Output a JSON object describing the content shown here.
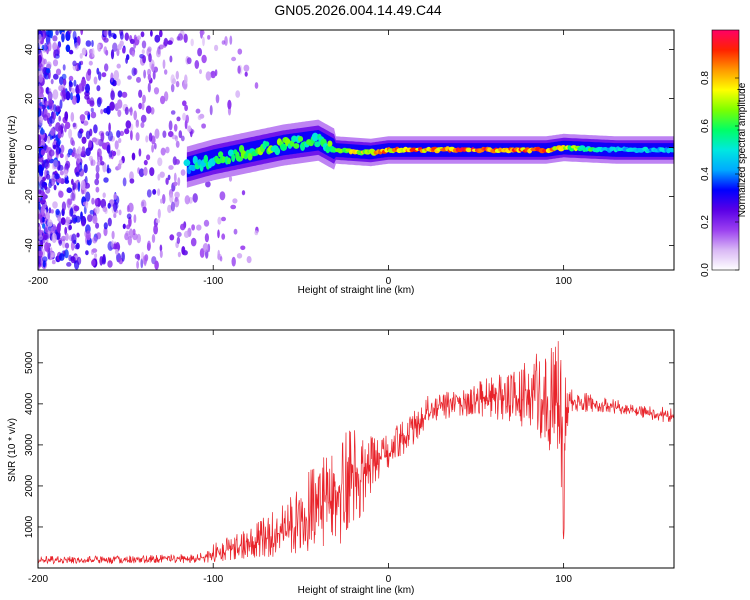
{
  "title": "GN05.2026.004.14.49.C44",
  "colors": {
    "snr_line": "#e8232a",
    "axis": "#000000",
    "background": "#ffffff"
  },
  "chart_data": [
    {
      "type": "heatmap",
      "title": "GN05.2026.004.14.49.C44",
      "xlabel": "Height of straight line (km)",
      "ylabel": "Frequency (Hz)",
      "xlim": [
        -200,
        163
      ],
      "ylim": [
        -50,
        48
      ],
      "x_ticks": [
        -200,
        -100,
        0,
        100
      ],
      "y_ticks": [
        -40,
        -20,
        0,
        20,
        40
      ],
      "colorbar": {
        "label": "Normalized spectral amplitude",
        "range": [
          0,
          1
        ],
        "ticks": [
          "0.0",
          "0.2",
          "0.4",
          "0.6",
          "0.8"
        ],
        "tick_values": [
          0.0,
          0.2,
          0.4,
          0.6,
          0.8
        ],
        "colormap": [
          "#ffffff",
          "#d9b8f5",
          "#9b40f0",
          "#5a00e6",
          "#0000ff",
          "#00aaff",
          "#00e8e0",
          "#00ff66",
          "#7cff00",
          "#ffff00",
          "#ff9900",
          "#ff2200",
          "#ff0066"
        ]
      },
      "description_series": [
        {
          "name": "noise region",
          "x_range": [
            -200,
            -75
          ],
          "frequency_range": [
            -48,
            48
          ],
          "amplitude_range": [
            0.0,
            0.3
          ]
        },
        {
          "name": "ridge",
          "points": [
            {
              "x": -115,
              "freq": -8,
              "amp": 0.45
            },
            {
              "x": -100,
              "freq": -5,
              "amp": 0.55
            },
            {
              "x": -80,
              "freq": -2,
              "amp": 0.6
            },
            {
              "x": -60,
              "freq": 1,
              "amp": 0.6
            },
            {
              "x": -40,
              "freq": 3,
              "amp": 0.55
            },
            {
              "x": -30,
              "freq": -1,
              "amp": 0.65
            },
            {
              "x": -10,
              "freq": -2,
              "amp": 0.75
            },
            {
              "x": 0,
              "freq": -1,
              "amp": 0.8
            },
            {
              "x": 40,
              "freq": -1,
              "amp": 0.85
            },
            {
              "x": 90,
              "freq": -1,
              "amp": 0.85
            },
            {
              "x": 100,
              "freq": 0,
              "amp": 0.7
            },
            {
              "x": 130,
              "freq": -1,
              "amp": 0.45
            },
            {
              "x": 163,
              "freq": -1,
              "amp": 0.45
            }
          ]
        }
      ]
    },
    {
      "type": "line",
      "title": "",
      "xlabel": "Height of straight line (km)",
      "ylabel": "SNR (10 * v/v)",
      "xlim": [
        -200,
        163
      ],
      "ylim": [
        0,
        5800
      ],
      "x_ticks": [
        -200,
        -100,
        0,
        100
      ],
      "y_ticks": [
        1000,
        2000,
        3000,
        4000,
        5000
      ],
      "series": [
        {
          "name": "SNR",
          "color": "#e8232a",
          "envelope": [
            {
              "x": -200,
              "low": 100,
              "high": 300
            },
            {
              "x": -150,
              "low": 100,
              "high": 300
            },
            {
              "x": -110,
              "low": 100,
              "high": 350
            },
            {
              "x": -95,
              "low": 150,
              "high": 700
            },
            {
              "x": -80,
              "low": 200,
              "high": 1000
            },
            {
              "x": -60,
              "low": 300,
              "high": 1600
            },
            {
              "x": -40,
              "low": 400,
              "high": 2700
            },
            {
              "x": -25,
              "low": 500,
              "high": 3500
            },
            {
              "x": -15,
              "low": 1300,
              "high": 3400
            },
            {
              "x": -5,
              "low": 2200,
              "high": 3100
            },
            {
              "x": 10,
              "low": 2800,
              "high": 3700
            },
            {
              "x": 25,
              "low": 3500,
              "high": 4300
            },
            {
              "x": 40,
              "low": 3700,
              "high": 4400
            },
            {
              "x": 60,
              "low": 3600,
              "high": 4700
            },
            {
              "x": 80,
              "low": 3300,
              "high": 5100
            },
            {
              "x": 90,
              "low": 3000,
              "high": 5500
            },
            {
              "x": 97,
              "low": 2500,
              "high": 5700
            },
            {
              "x": 100,
              "low": 700,
              "high": 5800
            },
            {
              "x": 103,
              "low": 3800,
              "high": 4400
            },
            {
              "x": 120,
              "low": 3800,
              "high": 4200
            },
            {
              "x": 140,
              "low": 3700,
              "high": 4000
            },
            {
              "x": 163,
              "low": 3500,
              "high": 3900
            }
          ]
        }
      ]
    }
  ]
}
